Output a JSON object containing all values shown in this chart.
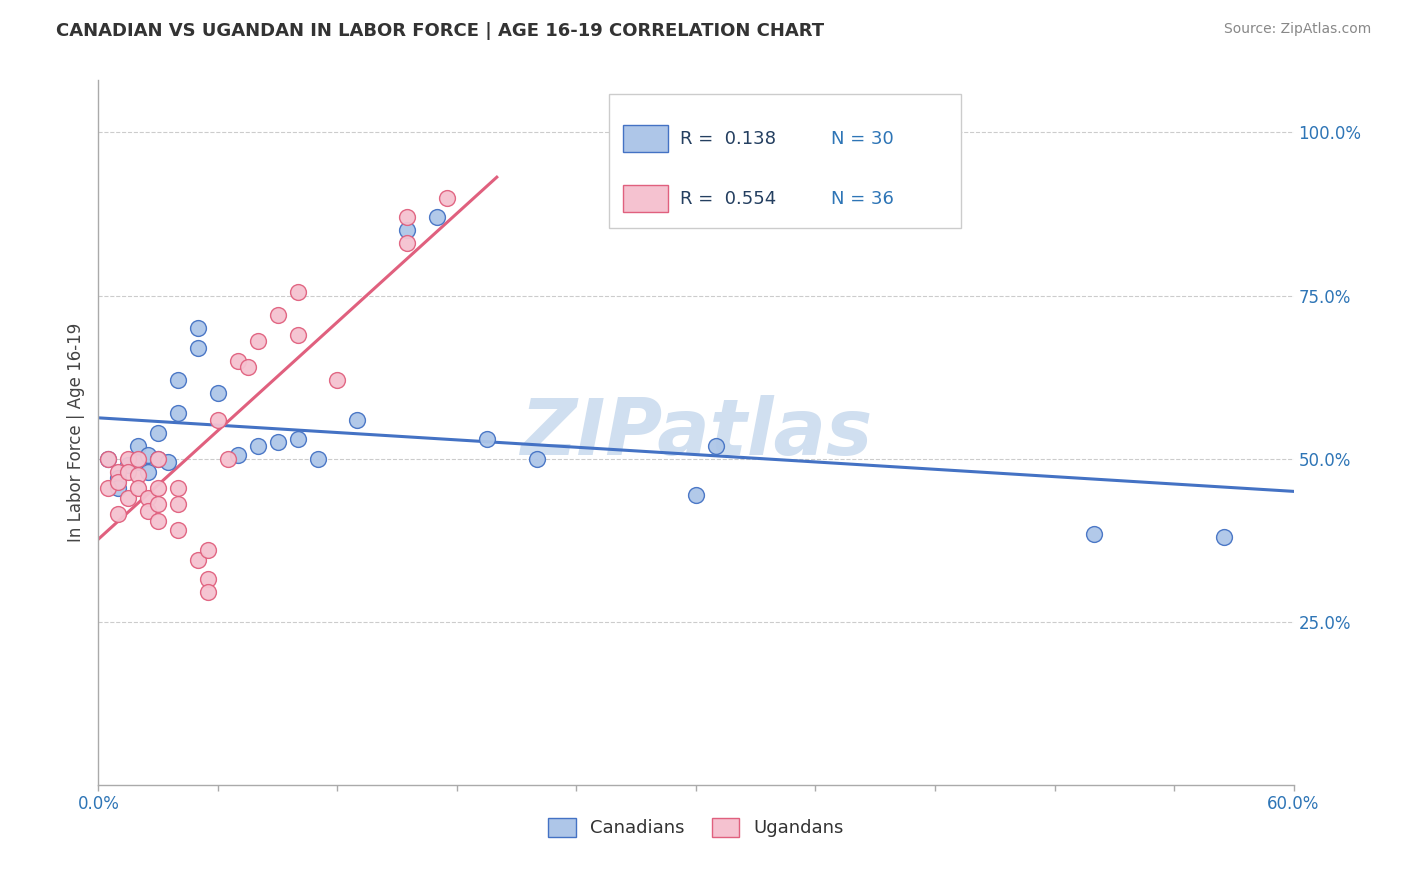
{
  "title": "CANADIAN VS UGANDAN IN LABOR FORCE | AGE 16-19 CORRELATION CHART",
  "source_text": "Source: ZipAtlas.com",
  "ylabel": "In Labor Force | Age 16-19",
  "xlim": [
    0.0,
    0.6
  ],
  "ylim": [
    0.0,
    1.1
  ],
  "xticks": [
    0.0,
    0.06,
    0.12,
    0.18,
    0.24,
    0.3,
    0.36,
    0.42,
    0.48,
    0.54,
    0.6
  ],
  "ytick_positions": [
    0.25,
    0.5,
    0.75,
    1.0
  ],
  "ytick_labels": [
    "25.0%",
    "50.0%",
    "75.0%",
    "100.0%"
  ],
  "canadian_R": 0.138,
  "canadian_N": 30,
  "ugandan_R": 0.554,
  "ugandan_N": 36,
  "canadian_color": "#aec6e8",
  "canadian_edge_color": "#4472c4",
  "ugandan_color": "#f5c2d0",
  "ugandan_edge_color": "#e0607e",
  "watermark": "ZIPatlas",
  "watermark_color": "#d0dff0",
  "r_label_color": "#243f60",
  "n_label_color": "#2e75b6",
  "tick_label_color": "#2e75b6",
  "background_color": "#ffffff",
  "grid_color": "#cccccc",
  "canadians_x": [
    0.005,
    0.01,
    0.01,
    0.015,
    0.02,
    0.02,
    0.025,
    0.025,
    0.03,
    0.03,
    0.035,
    0.04,
    0.04,
    0.05,
    0.05,
    0.06,
    0.07,
    0.08,
    0.09,
    0.1,
    0.11,
    0.13,
    0.155,
    0.17,
    0.195,
    0.22,
    0.3,
    0.31,
    0.5,
    0.565
  ],
  "canadians_y": [
    0.5,
    0.47,
    0.455,
    0.49,
    0.495,
    0.52,
    0.48,
    0.505,
    0.5,
    0.54,
    0.495,
    0.57,
    0.62,
    0.67,
    0.7,
    0.6,
    0.505,
    0.52,
    0.525,
    0.53,
    0.5,
    0.56,
    0.85,
    0.87,
    0.53,
    0.5,
    0.445,
    0.52,
    0.385,
    0.38
  ],
  "ugandans_x": [
    0.005,
    0.005,
    0.01,
    0.01,
    0.01,
    0.015,
    0.015,
    0.015,
    0.02,
    0.02,
    0.02,
    0.025,
    0.025,
    0.03,
    0.03,
    0.03,
    0.03,
    0.04,
    0.04,
    0.04,
    0.05,
    0.055,
    0.055,
    0.055,
    0.06,
    0.065,
    0.07,
    0.075,
    0.08,
    0.09,
    0.1,
    0.1,
    0.12,
    0.155,
    0.155,
    0.175
  ],
  "ugandans_y": [
    0.5,
    0.455,
    0.48,
    0.465,
    0.415,
    0.5,
    0.48,
    0.44,
    0.5,
    0.475,
    0.455,
    0.44,
    0.42,
    0.5,
    0.455,
    0.43,
    0.405,
    0.455,
    0.43,
    0.39,
    0.345,
    0.36,
    0.315,
    0.295,
    0.56,
    0.5,
    0.65,
    0.64,
    0.68,
    0.72,
    0.69,
    0.755,
    0.62,
    0.83,
    0.87,
    0.9
  ]
}
